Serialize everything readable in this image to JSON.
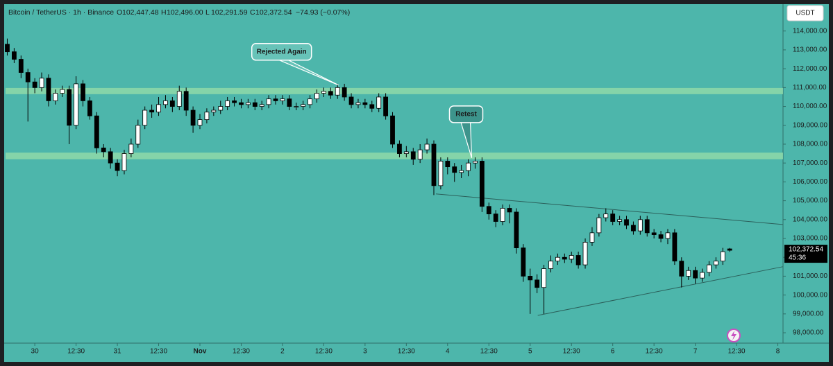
{
  "chart_data": {
    "type": "candlestick",
    "header": {
      "symbol": "Bitcoin / TetherUS · 1h · Binance",
      "ohlc": [
        {
          "label": "O",
          "value": "102,447.48"
        },
        {
          "label": "H",
          "value": "102,496.00"
        },
        {
          "label": "L",
          "value": "102,291.59"
        },
        {
          "label": "C",
          "value": "102,372.54"
        }
      ],
      "change": "−74.93 (−0.07%)"
    },
    "currency": "USDT",
    "last_price_label": "102,372.54",
    "countdown": "45:36",
    "up_color": "#ffffff",
    "down_color": "#000000",
    "background": "#4db6ab",
    "zone_color": "#8fd9a8",
    "xlim": [
      -8.5,
      217.5
    ],
    "ylim": [
      97450,
      115350
    ],
    "xticks": [
      {
        "value": 0,
        "label": "30"
      },
      {
        "value": 12,
        "label": "12:30"
      },
      {
        "value": 24,
        "label": "31"
      },
      {
        "value": 36,
        "label": "12:30"
      },
      {
        "value": 48,
        "label": "Nov"
      },
      {
        "value": 60,
        "label": "12:30"
      },
      {
        "value": 72,
        "label": "2"
      },
      {
        "value": 84,
        "label": "12:30"
      },
      {
        "value": 96,
        "label": "3"
      },
      {
        "value": 108,
        "label": "12:30"
      },
      {
        "value": 120,
        "label": "4"
      },
      {
        "value": 132,
        "label": "12:30"
      },
      {
        "value": 144,
        "label": "5"
      },
      {
        "value": 156,
        "label": "12:30"
      },
      {
        "value": 168,
        "label": "6"
      },
      {
        "value": 180,
        "label": "12:30"
      },
      {
        "value": 192,
        "label": "7"
      },
      {
        "value": 204,
        "label": "12:30"
      },
      {
        "value": 216,
        "label": "8"
      }
    ],
    "yticks": [
      {
        "value": 98000,
        "label": "98,000.00"
      },
      {
        "value": 99000,
        "label": "99,000.00"
      },
      {
        "value": 100000,
        "label": "100,000.00"
      },
      {
        "value": 101000,
        "label": "101,000.00"
      },
      {
        "value": 102000,
        "label": "102,000.00"
      },
      {
        "value": 103000,
        "label": "103,000.00"
      },
      {
        "value": 104000,
        "label": "104,000.00"
      },
      {
        "value": 105000,
        "label": "105,000.00"
      },
      {
        "value": 106000,
        "label": "106,000.00"
      },
      {
        "value": 107000,
        "label": "107,000.00"
      },
      {
        "value": 108000,
        "label": "108,000.00"
      },
      {
        "value": 109000,
        "label": "109,000.00"
      },
      {
        "value": 110000,
        "label": "110,000.00"
      },
      {
        "value": 111000,
        "label": "111,000.00"
      },
      {
        "value": 112000,
        "label": "112,000.00"
      },
      {
        "value": 113000,
        "label": "113,000.00"
      },
      {
        "value": 114000,
        "label": "114,000.00"
      }
    ],
    "zones": [
      [
        110650,
        110980
      ],
      [
        107200,
        107550
      ]
    ],
    "trendlines": [
      {
        "x": [
          116.6,
          217.4
        ],
        "y": [
          105360,
          103740
        ]
      },
      {
        "x": [
          146.2,
          217.4
        ],
        "y": [
          98920,
          101500
        ]
      }
    ],
    "annotations": [
      {
        "text": "Rejected Again",
        "x": 88.3,
        "y": 111130
      },
      {
        "text": "Retest",
        "x": 127,
        "y": 107270
      }
    ],
    "x": [
      -8,
      -6,
      -4,
      -2,
      0,
      2,
      4,
      6,
      8,
      10,
      12,
      14,
      16,
      18,
      20,
      22,
      24,
      26,
      28,
      30,
      32,
      34,
      36,
      38,
      40,
      42,
      44,
      46,
      48,
      50,
      52,
      54,
      56,
      58,
      60,
      62,
      64,
      66,
      68,
      70,
      72,
      74,
      76,
      78,
      80,
      82,
      84,
      86,
      88,
      90,
      92,
      94,
      96,
      98,
      100,
      102,
      104,
      106,
      108,
      110,
      112,
      114,
      116,
      118,
      120,
      122,
      124,
      126,
      128,
      130,
      132,
      134,
      136,
      138,
      140,
      142,
      144,
      146,
      148,
      150,
      152,
      154,
      156,
      158,
      160,
      162,
      164,
      166,
      168,
      170,
      172,
      174,
      176,
      178,
      180,
      182,
      184,
      186,
      188,
      190,
      192,
      194,
      196,
      198,
      200,
      202
    ],
    "open": [
      113300,
      112900,
      112500,
      111800,
      111300,
      111000,
      111500,
      110300,
      110700,
      110900,
      109000,
      111200,
      110300,
      109500,
      107800,
      107600,
      107000,
      106600,
      107500,
      108000,
      109000,
      109800,
      109700,
      110100,
      110300,
      110000,
      110800,
      109800,
      109000,
      109300,
      109700,
      109800,
      110000,
      110300,
      110200,
      110100,
      110200,
      110000,
      110100,
      110400,
      110300,
      110400,
      110000,
      110000,
      110100,
      110400,
      110700,
      110800,
      110600,
      111000,
      110500,
      110100,
      110200,
      110100,
      109900,
      110500,
      109500,
      108000,
      107500,
      107600,
      107200,
      107700,
      108000,
      105800,
      107100,
      106800,
      106500,
      106600,
      107000,
      107100,
      104700,
      104300,
      103900,
      104600,
      104400,
      102500,
      101000,
      100800,
      100400,
      101400,
      101800,
      102000,
      101900,
      102100,
      101600,
      102800,
      103300,
      104100,
      104300,
      103900,
      104000,
      103700,
      103400,
      104000,
      103300,
      103200,
      103000,
      103300,
      101800,
      101000,
      101300,
      100900,
      101200,
      101600,
      101800,
      102447.48
    ],
    "high": [
      113600,
      113100,
      112700,
      112000,
      111500,
      111800,
      111700,
      110900,
      111100,
      111100,
      111600,
      111400,
      110500,
      109700,
      108000,
      107800,
      107200,
      107700,
      108300,
      109300,
      110000,
      110100,
      110500,
      110600,
      110500,
      111100,
      111000,
      110000,
      109600,
      109900,
      110000,
      110300,
      110500,
      110500,
      110400,
      110400,
      110400,
      110300,
      110600,
      110600,
      110600,
      110600,
      110200,
      110300,
      110600,
      110900,
      111000,
      111000,
      111200,
      111200,
      110700,
      110400,
      110400,
      110300,
      110700,
      110700,
      109700,
      108200,
      107900,
      107800,
      108000,
      108300,
      108200,
      107300,
      107300,
      107000,
      106900,
      107200,
      107300,
      107300,
      104900,
      104500,
      104800,
      104800,
      104600,
      102700,
      101400,
      101100,
      101600,
      102100,
      102200,
      102200,
      102300,
      102300,
      103000,
      103600,
      104300,
      104600,
      104500,
      104200,
      104200,
      103900,
      104200,
      104200,
      103500,
      103400,
      103500,
      103500,
      102000,
      101500,
      101500,
      101400,
      101800,
      102000,
      102500,
      102496
    ],
    "low": [
      112700,
      112300,
      111500,
      109200,
      110700,
      110800,
      110000,
      110100,
      110500,
      108000,
      108800,
      110000,
      109300,
      107500,
      107300,
      106700,
      106300,
      106400,
      107300,
      107800,
      108800,
      109400,
      109500,
      109900,
      109700,
      109800,
      109500,
      108600,
      108800,
      109100,
      109500,
      109600,
      109800,
      110000,
      109900,
      109900,
      109800,
      109800,
      109900,
      110100,
      110100,
      109800,
      109800,
      109800,
      109900,
      110200,
      110500,
      110400,
      110400,
      110300,
      109900,
      109900,
      109900,
      109700,
      109700,
      109300,
      107800,
      107300,
      107300,
      106900,
      107000,
      107500,
      105300,
      105600,
      106400,
      106000,
      106200,
      106300,
      106700,
      104400,
      104000,
      103600,
      103700,
      103800,
      102200,
      100700,
      99000,
      100100,
      99000,
      101200,
      101600,
      101700,
      101700,
      101400,
      101400,
      102600,
      103100,
      103900,
      103700,
      103700,
      103500,
      103200,
      103200,
      103100,
      103000,
      102800,
      102700,
      101600,
      100400,
      100800,
      100600,
      100700,
      101000,
      101400,
      101600,
      102291.59
    ],
    "close": [
      112900,
      112500,
      111800,
      111300,
      111000,
      111500,
      110300,
      110700,
      110900,
      109000,
      111200,
      110300,
      109500,
      107800,
      107600,
      107000,
      106600,
      107500,
      108000,
      109000,
      109800,
      109700,
      110100,
      110300,
      110000,
      110800,
      109800,
      109000,
      109300,
      109700,
      109800,
      110000,
      110300,
      110200,
      110100,
      110200,
      110000,
      110100,
      110400,
      110300,
      110400,
      110000,
      110000,
      110100,
      110400,
      110700,
      110800,
      110600,
      111000,
      110500,
      110100,
      110200,
      110100,
      109900,
      110500,
      109500,
      108000,
      107500,
      107600,
      107200,
      107700,
      108000,
      105800,
      107100,
      106800,
      106500,
      106600,
      107000,
      107100,
      104700,
      104300,
      103900,
      104600,
      104400,
      102500,
      101000,
      100800,
      100400,
      101400,
      101800,
      102000,
      101900,
      102100,
      101600,
      102800,
      103300,
      104100,
      104300,
      103900,
      104000,
      103700,
      103400,
      104000,
      103300,
      103200,
      103000,
      103300,
      101800,
      101000,
      101300,
      100900,
      101200,
      101600,
      101800,
      102300,
      102372.54
    ]
  }
}
